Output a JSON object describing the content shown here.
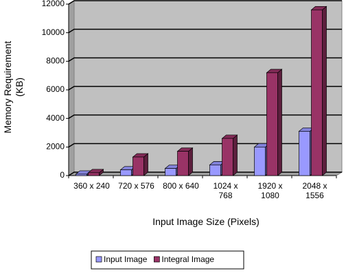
{
  "chart_data": {
    "type": "bar3d",
    "y_label": "Memory Requirement\n(KB)",
    "x_label": "Input Image Size (Pixels)",
    "categories": [
      "360 x 240",
      "720 x 576",
      "800 x 640",
      "1024 x\n768",
      "1920 x\n1080",
      "2048 x\n1556"
    ],
    "series": [
      {
        "name": "Input Image",
        "color": "#9999ff",
        "values": [
          100,
          400,
          500,
          750,
          2000,
          3100
        ]
      },
      {
        "name": "Integral Image",
        "color": "#993366",
        "values": [
          200,
          1300,
          1700,
          2600,
          7200,
          11600
        ]
      }
    ],
    "ylim": [
      0,
      12000
    ],
    "yticks": [
      0,
      2000,
      4000,
      6000,
      8000,
      10000,
      12000
    ],
    "grid": true,
    "legend": "bottom"
  }
}
